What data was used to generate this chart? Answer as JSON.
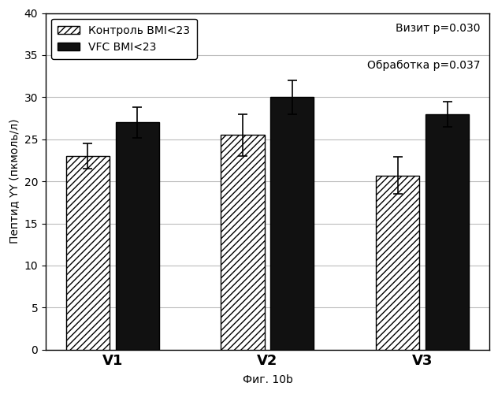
{
  "categories": [
    "V1",
    "V2",
    "V3"
  ],
  "control_values": [
    23.0,
    25.5,
    20.7
  ],
  "vfc_values": [
    27.0,
    30.0,
    28.0
  ],
  "control_errors": [
    1.5,
    2.5,
    2.2
  ],
  "vfc_errors": [
    1.8,
    2.0,
    1.5
  ],
  "ylabel": "Пептид YY (пкмоль/л)",
  "xlabel": "Фиг. 10b",
  "ylim": [
    0,
    40
  ],
  "yticks": [
    0,
    5,
    10,
    15,
    20,
    25,
    30,
    35,
    40
  ],
  "legend_label_control": "Контроль BMI<23",
  "legend_label_vfc": "VFC BMI<23",
  "annotation1": "Визит p=0.030",
  "annotation2": "Обработка p=0.037",
  "bar_width": 0.28,
  "hatch_control": "////",
  "color_control": "white",
  "color_vfc": "#111111",
  "edgecolor": "black",
  "background_color": "white",
  "label_fontsize": 10,
  "tick_fontsize": 10,
  "legend_fontsize": 10,
  "annotation_fontsize": 10,
  "xtick_fontsize": 13
}
